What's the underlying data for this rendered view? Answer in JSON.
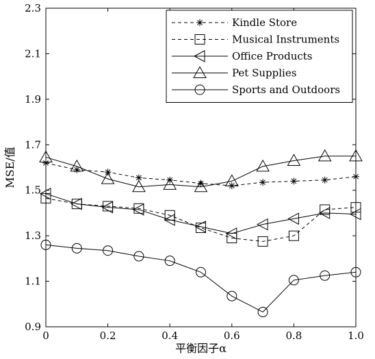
{
  "chart_data": {
    "type": "line",
    "title": "",
    "xlabel": "平衡因子α",
    "ylabel": "MSE/值",
    "xlim": [
      0,
      1.0
    ],
    "ylim": [
      0.9,
      2.3
    ],
    "x_ticks": [
      "0",
      "0.2",
      "0.4",
      "0.6",
      "0.8",
      "1.0"
    ],
    "y_ticks": [
      "0.9",
      "1.1",
      "1.3",
      "1.5",
      "1.7",
      "1.9",
      "2.1",
      "2.3"
    ],
    "grid": false,
    "legend_position": "top-right",
    "x": [
      0,
      0.1,
      0.2,
      0.3,
      0.4,
      0.5,
      0.6,
      0.7,
      0.8,
      0.9,
      1.0
    ],
    "series": [
      {
        "name": "Kindle Store",
        "marker": "asterisk",
        "line": "dashed",
        "values": [
          1.62,
          1.59,
          1.58,
          1.555,
          1.545,
          1.53,
          1.52,
          1.535,
          1.54,
          1.545,
          1.56
        ]
      },
      {
        "name": "Musical Instruments",
        "marker": "square",
        "line": "dashed",
        "values": [
          1.465,
          1.44,
          1.43,
          1.42,
          1.39,
          1.335,
          1.29,
          1.275,
          1.3,
          1.415,
          1.425
        ]
      },
      {
        "name": "Office Products",
        "marker": "triangle-left",
        "line": "solid",
        "values": [
          1.485,
          1.44,
          1.425,
          1.415,
          1.37,
          1.34,
          1.31,
          1.35,
          1.375,
          1.4,
          1.395
        ]
      },
      {
        "name": "Pet Supplies",
        "marker": "triangle-up",
        "line": "solid",
        "values": [
          1.645,
          1.605,
          1.55,
          1.515,
          1.525,
          1.515,
          1.54,
          1.605,
          1.63,
          1.65,
          1.65
        ]
      },
      {
        "name": "Sports and Outdoors",
        "marker": "circle",
        "line": "solid",
        "values": [
          1.26,
          1.245,
          1.235,
          1.21,
          1.19,
          1.14,
          1.035,
          0.965,
          1.105,
          1.125,
          1.14
        ]
      }
    ]
  }
}
